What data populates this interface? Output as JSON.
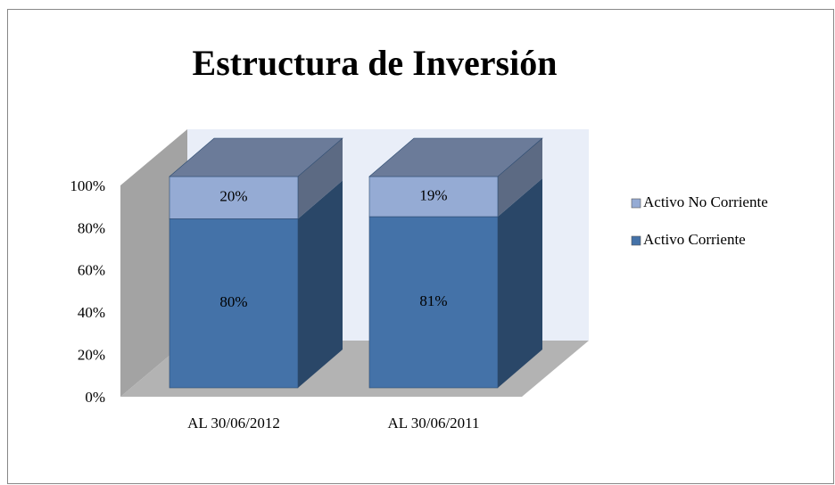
{
  "chart_data": {
    "type": "bar3d_stacked",
    "title": "Estructura de Inversión",
    "categories": [
      "AL 30/06/2012",
      "AL 30/06/2011"
    ],
    "series": [
      {
        "name": "Activo Corriente",
        "color": "#4472a8",
        "values": [
          80,
          81
        ],
        "value_labels": [
          "80%",
          "81%"
        ]
      },
      {
        "name": "Activo No Corriente",
        "color": "#95abd4",
        "values": [
          20,
          19
        ],
        "value_labels": [
          "20%",
          "19%"
        ]
      }
    ],
    "ylim": [
      0,
      100
    ],
    "yticks": [
      {
        "value": 0,
        "label": "0%"
      },
      {
        "value": 20,
        "label": "20%"
      },
      {
        "value": 40,
        "label": "40%"
      },
      {
        "value": 60,
        "label": "60%"
      },
      {
        "value": 80,
        "label": "80%"
      },
      {
        "value": 100,
        "label": "100%"
      }
    ],
    "legend": "right"
  }
}
